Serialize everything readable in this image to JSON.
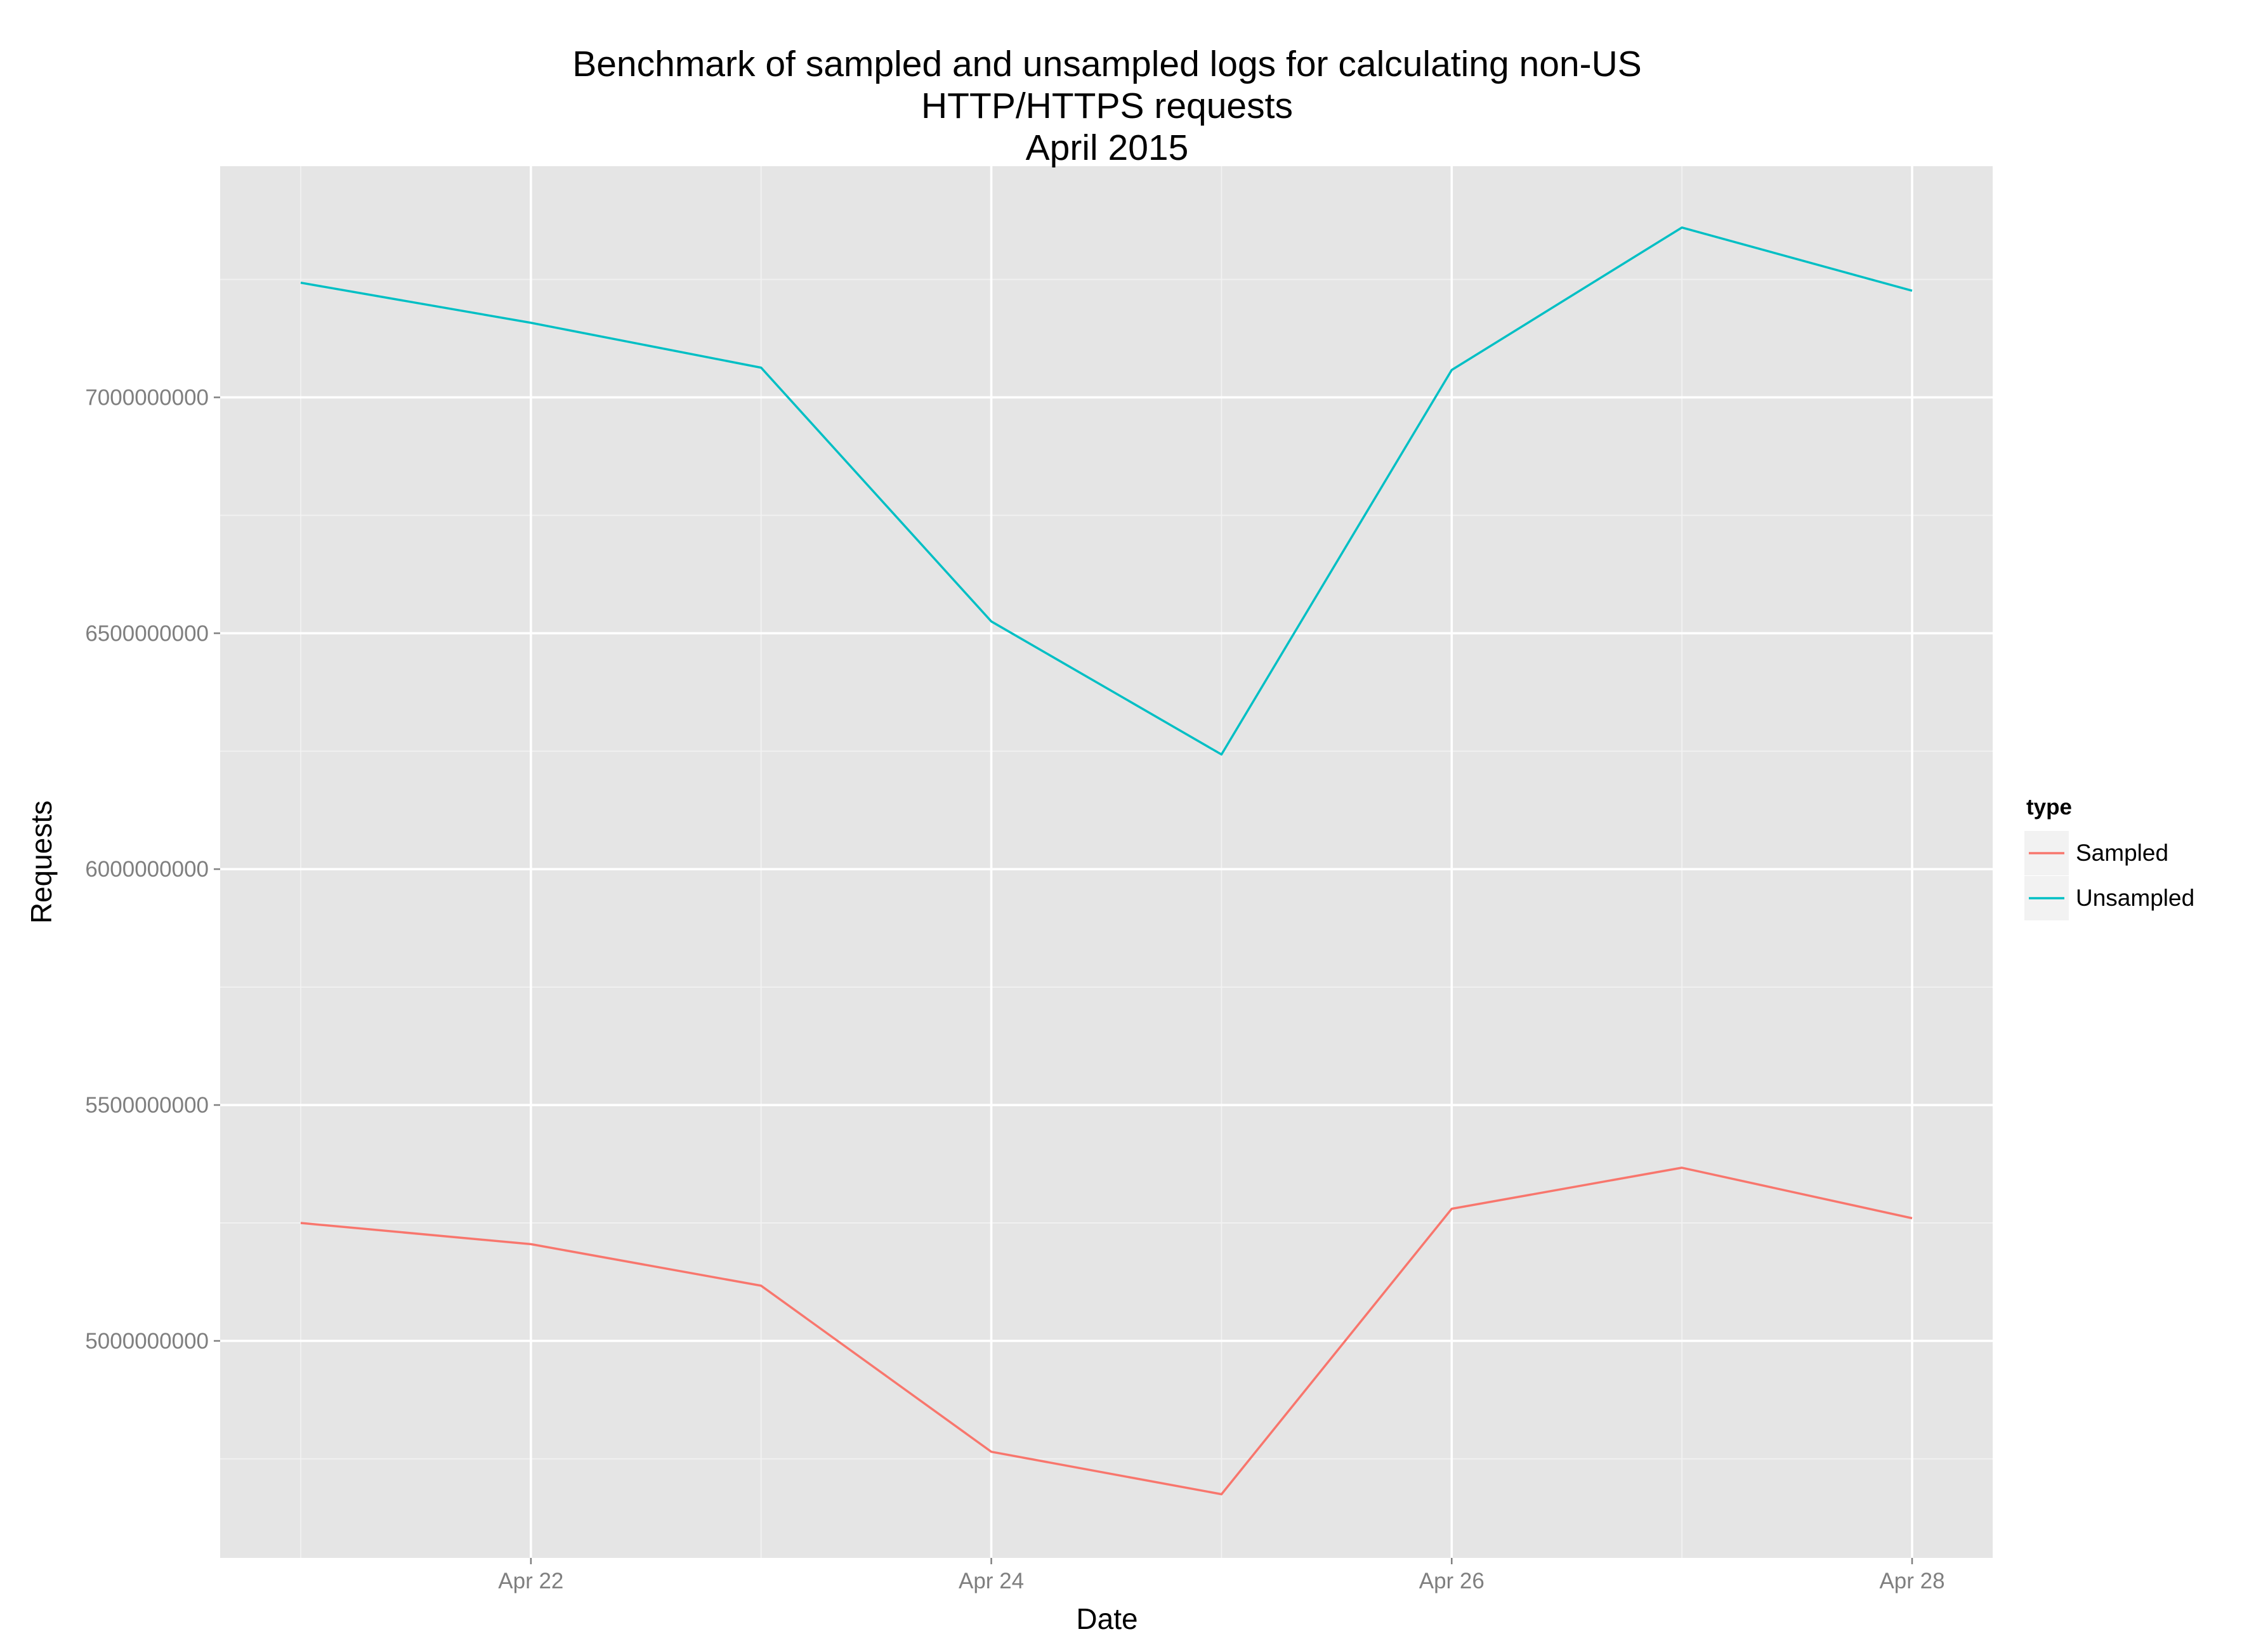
{
  "chart_data": {
    "type": "line",
    "title_lines": [
      "Benchmark of sampled and unsampled logs for calculating non-US",
      "HTTP/HTTPS requests",
      "April 2015"
    ],
    "xlabel": "Date",
    "ylabel": "Requests",
    "x": [
      "2015-04-21",
      "2015-04-22",
      "2015-04-23",
      "2015-04-24",
      "2015-04-25",
      "2015-04-26",
      "2015-04-27",
      "2015-04-28"
    ],
    "x_ticks": [
      {
        "value": "2015-04-22",
        "label": "Apr 22"
      },
      {
        "value": "2015-04-24",
        "label": "Apr 24"
      },
      {
        "value": "2015-04-26",
        "label": "Apr 26"
      },
      {
        "value": "2015-04-28",
        "label": "Apr 28"
      }
    ],
    "y_ticks": [
      {
        "value": 5000000000,
        "label": "5000000000"
      },
      {
        "value": 5500000000,
        "label": "5500000000"
      },
      {
        "value": 6000000000,
        "label": "6000000000"
      },
      {
        "value": 6500000000,
        "label": "6500000000"
      },
      {
        "value": 7000000000,
        "label": "7000000000"
      }
    ],
    "xlim": [
      "2015-04-20T15:36",
      "2015-04-28T08:24"
    ],
    "ylim": [
      4540000000,
      7490000000
    ],
    "grid": true,
    "legend": {
      "title": "type",
      "position": "right"
    },
    "series": [
      {
        "name": "Sampled",
        "color": "#f8766d",
        "values": [
          5250000000,
          5205000000,
          5117000000,
          4765000000,
          4675000000,
          5280000000,
          5367000000,
          5260000000
        ]
      },
      {
        "name": "Unsampled",
        "color": "#00bfc4",
        "values": [
          7243000000,
          7158000000,
          7063000000,
          6525000000,
          6243000000,
          7058000000,
          7360000000,
          7226000000
        ]
      }
    ]
  }
}
